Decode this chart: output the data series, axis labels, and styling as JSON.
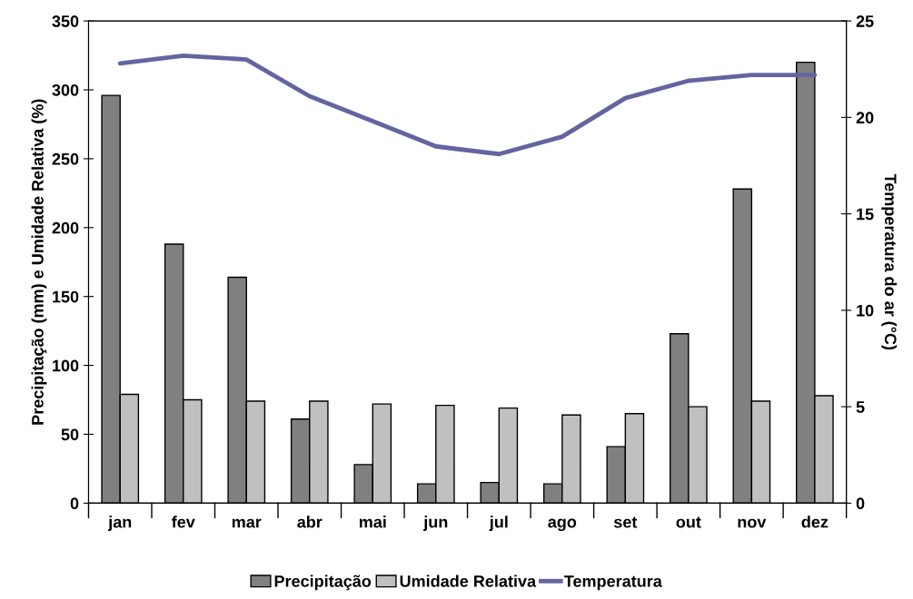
{
  "chart_data": {
    "type": "bar",
    "categories": [
      "jan",
      "fev",
      "mar",
      "abr",
      "mai",
      "jun",
      "jul",
      "ago",
      "set",
      "out",
      "nov",
      "dez"
    ],
    "ylabel": "Precipitação (mm) e Umidade Relativa (%)",
    "y2label": "Temperatura do ar (°C)",
    "ylim": [
      0,
      350
    ],
    "yticks": [
      0,
      50,
      100,
      150,
      200,
      250,
      300,
      350
    ],
    "y2lim": [
      0,
      25
    ],
    "y2ticks": [
      0,
      5,
      10,
      15,
      20,
      25
    ],
    "series": [
      {
        "name": "Precipitação",
        "color": "#808080",
        "values": [
          296,
          188,
          164,
          61,
          28,
          14,
          15,
          14,
          41,
          123,
          228,
          320
        ]
      },
      {
        "name": "Umidade Relativa",
        "color": "#c0c0c0",
        "values": [
          79,
          75,
          74,
          74,
          72,
          71,
          69,
          64,
          65,
          70,
          74,
          78
        ]
      },
      {
        "name": "Temperatura",
        "type": "line",
        "axis": "y2",
        "color": "#6464a0",
        "values": [
          22.8,
          23.2,
          23.0,
          21.1,
          19.8,
          18.5,
          18.1,
          19.0,
          21.0,
          21.9,
          22.2,
          22.2
        ]
      }
    ],
    "legend": "bottom",
    "grid": false
  }
}
